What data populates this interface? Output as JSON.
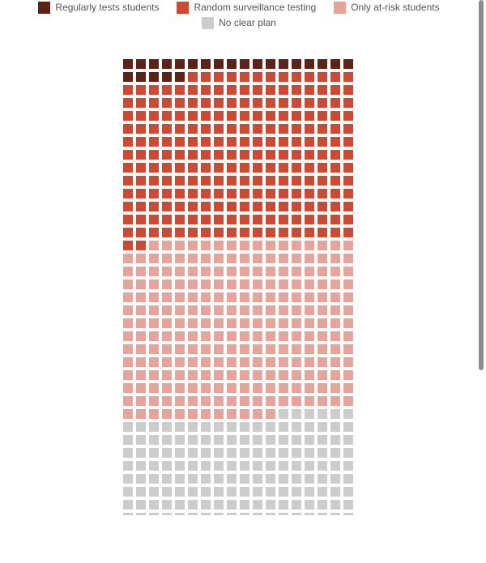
{
  "chart_data": {
    "type": "waffle",
    "columns": 18,
    "rows": 36,
    "categories": [
      {
        "name": "Regularly tests students",
        "count": 23,
        "color": "#5e2317"
      },
      {
        "name": "Random surveillance testing",
        "count": 231,
        "color": "#cb4a35"
      },
      {
        "name": "Only at-risk students",
        "count": 244,
        "color": "#e6a59a"
      },
      {
        "name": "No clear plan",
        "count": 150,
        "color": "#cccccc"
      }
    ],
    "legend_position": "top-center"
  }
}
